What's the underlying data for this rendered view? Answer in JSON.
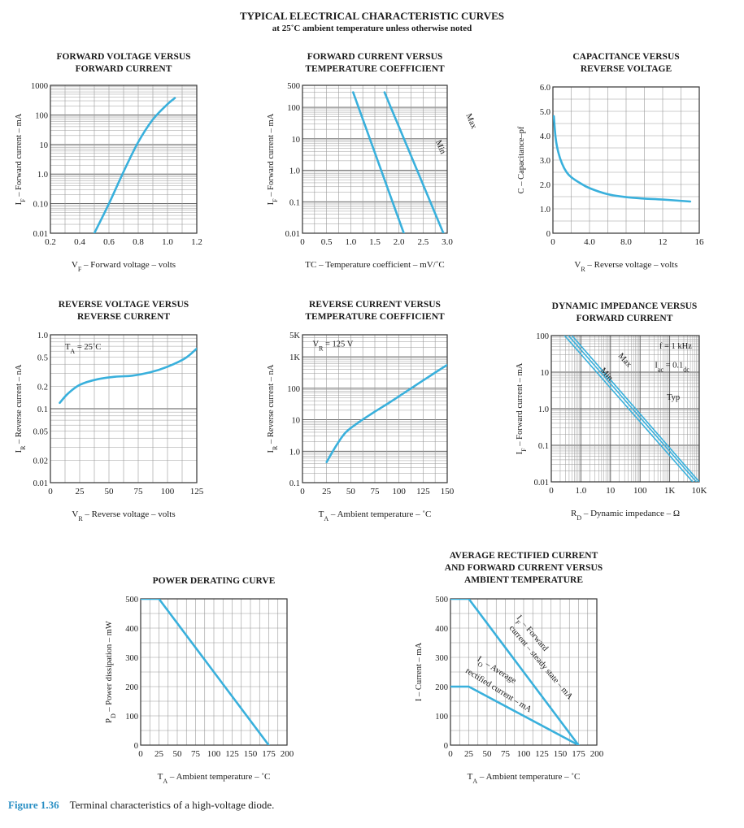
{
  "header": {
    "title": "TYPICAL ELECTRICAL CHARACTERISTIC CURVES",
    "subtitle": "at 25˚C ambient temperature unless otherwise noted"
  },
  "caption": {
    "figure": "Figure 1.36",
    "text": "Terminal characteristics of a high-voltage diode."
  },
  "colors": {
    "curve": "#39b0dc",
    "grid": "#9a9a9a",
    "frame": "#333333"
  },
  "chart_data": [
    {
      "id": "c1",
      "type": "line",
      "title": [
        "FORWARD VOLTAGE VERSUS",
        "FORWARD CURRENT"
      ],
      "xlabel": "V_F – Forward voltage – volts",
      "ylabel": "I_F – Forward current – mA",
      "xlim": [
        0.2,
        1.2
      ],
      "ylim": [
        0.01,
        1000
      ],
      "yscale": "log",
      "xticks": [
        0.2,
        0.4,
        0.6,
        0.8,
        1.0,
        1.2
      ],
      "xticklabels": [
        "0.2",
        "0.4",
        "0.6",
        "0.8",
        "1.0",
        "1.2"
      ],
      "yticks": [
        0.01,
        0.1,
        1,
        10,
        100,
        1000
      ],
      "yticklabels": [
        "0.01",
        "0.10",
        "1.0",
        "10",
        "100",
        "1000"
      ],
      "grid": true,
      "annotations": [],
      "series": [
        {
          "x": [
            0.5,
            0.6,
            0.7,
            0.8,
            0.9,
            1.0,
            1.05
          ],
          "y": [
            0.01,
            0.1,
            1.2,
            12,
            70,
            230,
            370
          ]
        }
      ]
    },
    {
      "id": "c2",
      "type": "line",
      "title": [
        "FORWARD CURRENT VERSUS",
        "TEMPERATURE COEFFICIENT"
      ],
      "xlabel": "TC – Temperature coefficient – mV/˚C",
      "ylabel": "I_F – Forward current – mA",
      "xlim": [
        0,
        3.0
      ],
      "ylim": [
        0.01,
        500
      ],
      "yscale": "log",
      "xticks": [
        0,
        0.5,
        1.0,
        1.5,
        2.0,
        2.5,
        3.0
      ],
      "xticklabels": [
        "0",
        "0.5",
        "1.0",
        "1.5",
        "2.0",
        "2.5",
        "3.0"
      ],
      "yticks": [
        0.01,
        0.1,
        1,
        10,
        100,
        500
      ],
      "yticklabels": [
        "0.01",
        "0.1",
        "1.0",
        "10",
        "100",
        "500"
      ],
      "grid": true,
      "annotations": [
        {
          "text": "Min",
          "x": 0.92,
          "y": 0.38,
          "rot": 67
        },
        {
          "text": "Max",
          "x": 1.13,
          "y": 0.2,
          "rot": 67
        }
      ],
      "series": [
        {
          "name": "Min",
          "x": [
            1.05,
            2.1
          ],
          "y": [
            300,
            0.01
          ]
        },
        {
          "name": "Max",
          "x": [
            1.7,
            2.92
          ],
          "y": [
            300,
            0.01
          ]
        }
      ]
    },
    {
      "id": "c3",
      "type": "line",
      "title": [
        "CAPACITANCE VERSUS",
        "REVERSE VOLTAGE"
      ],
      "xlabel": "V_R – Reverse voltage – volts",
      "ylabel": "C – Capacitance–pf",
      "xlim": [
        0,
        16
      ],
      "ylim": [
        0,
        6.0
      ],
      "yscale": "linear",
      "xticks": [
        0,
        4,
        8,
        12,
        16
      ],
      "xticklabels": [
        "0",
        "4.0",
        "8.0",
        "12",
        "16"
      ],
      "yticks": [
        0,
        1,
        2,
        3,
        4,
        5,
        6
      ],
      "yticklabels": [
        "0",
        "1.0",
        "2.0",
        "3.0",
        "4.0",
        "5.0",
        "6.0"
      ],
      "grid": true,
      "annotations": [],
      "series": [
        {
          "x": [
            0.1,
            0.3,
            0.6,
            1,
            1.5,
            2,
            3,
            4,
            6,
            8,
            10,
            12,
            15
          ],
          "y": [
            4.8,
            3.9,
            3.3,
            2.85,
            2.5,
            2.3,
            2.05,
            1.85,
            1.6,
            1.48,
            1.42,
            1.38,
            1.3
          ]
        }
      ]
    },
    {
      "id": "c4",
      "type": "line",
      "title": [
        "REVERSE VOLTAGE VERSUS",
        "REVERSE CURRENT"
      ],
      "xlabel": "V_R – Reverse voltage – volts",
      "ylabel": "I_R – Reverse current – nA",
      "xlim": [
        0,
        125
      ],
      "ylim": [
        0.01,
        1.0
      ],
      "yscale": "log",
      "xticks": [
        0,
        25,
        50,
        75,
        100,
        125
      ],
      "xticklabels": [
        "0",
        "25",
        "50",
        "75",
        "100",
        "125"
      ],
      "yticks": [
        0.01,
        0.02,
        0.05,
        0.1,
        0.2,
        0.5,
        1.0
      ],
      "yticklabels": [
        "0.01",
        "0.02",
        "0.05",
        "0.1",
        "0.2",
        "0.5",
        "1.0"
      ],
      "grid": true,
      "annotations": [
        {
          "text": "T_A = 25˚C",
          "x": 0.1,
          "y": 0.1,
          "rot": 0
        }
      ],
      "series": [
        {
          "x": [
            8,
            15,
            25,
            40,
            55,
            70,
            85,
            100,
            115,
            125
          ],
          "y": [
            0.12,
            0.16,
            0.21,
            0.25,
            0.27,
            0.28,
            0.31,
            0.37,
            0.48,
            0.65
          ]
        }
      ]
    },
    {
      "id": "c5",
      "type": "line",
      "title": [
        "REVERSE CURRENT VERSUS",
        "TEMPERATURE COEFFICIENT"
      ],
      "xlabel": "T_A – Ambient temperature – ˚C",
      "ylabel": "I_R – Reverse current – nA",
      "xlim": [
        0,
        150
      ],
      "ylim": [
        0.1,
        5000
      ],
      "yscale": "log",
      "xticks": [
        0,
        25,
        50,
        75,
        100,
        125,
        150
      ],
      "xticklabels": [
        "0",
        "25",
        "50",
        "75",
        "100",
        "125",
        "150"
      ],
      "yticks": [
        0.1,
        1,
        10,
        100,
        1000,
        5000
      ],
      "yticklabels": [
        "0.1",
        "1.0",
        "10",
        "100",
        "1K",
        "5K"
      ],
      "grid": true,
      "annotations": [
        {
          "text": "V_R = 125 V",
          "x": 0.07,
          "y": 0.08,
          "rot": 0
        }
      ],
      "series": [
        {
          "x": [
            25,
            35,
            45,
            60,
            75,
            90,
            105,
            120,
            135,
            150
          ],
          "y": [
            0.45,
            1.5,
            4,
            9,
            18,
            35,
            70,
            140,
            280,
            550
          ]
        }
      ]
    },
    {
      "id": "c6",
      "type": "line",
      "title": [
        "DYNAMIC IMPEDANCE VERSUS",
        "FORWARD CURRENT"
      ],
      "xlabel": "R_D – Dynamic impedance – Ω",
      "ylabel": "I_F – Forward current – mA",
      "xlim": [
        0.1,
        10000
      ],
      "ylim": [
        0.01,
        100
      ],
      "xscale": "log",
      "yscale": "log",
      "xticks": [
        0.1,
        1,
        10,
        100,
        1000,
        10000
      ],
      "xticklabels": [
        "0",
        "1.0",
        "10",
        "100",
        "1K",
        "10K"
      ],
      "yticks": [
        0.01,
        0.1,
        1,
        10,
        100
      ],
      "yticklabels": [
        "0.01",
        "0.1",
        "1.0",
        "10",
        "100"
      ],
      "grid": true,
      "annotations": [
        {
          "text": "Max",
          "x": 0.45,
          "y": 0.14,
          "rot": 48
        },
        {
          "text": "Min",
          "x": 0.33,
          "y": 0.24,
          "rot": 48
        },
        {
          "text": "f = 1 kHz",
          "x": 0.73,
          "y": 0.09,
          "rot": 0
        },
        {
          "text": "I_ac = 0.1_dc",
          "x": 0.7,
          "y": 0.22,
          "rot": 0
        },
        {
          "text": "Typ",
          "x": 0.78,
          "y": 0.44,
          "rot": 0
        }
      ],
      "series": [
        {
          "name": "Max",
          "x": [
            0.5,
            10000
          ],
          "y": [
            100,
            0.01
          ]
        },
        {
          "name": "Typ",
          "x": [
            0.38,
            8000
          ],
          "y": [
            100,
            0.01
          ]
        },
        {
          "name": "Min",
          "x": [
            0.28,
            6000
          ],
          "y": [
            100,
            0.01
          ]
        }
      ]
    },
    {
      "id": "c7",
      "type": "line",
      "title": [
        "POWER DERATING CURVE"
      ],
      "xlabel": "T_A – Ambient temperature – ˚C",
      "ylabel": "P_D – Power dissipation – mW",
      "xlim": [
        0,
        200
      ],
      "ylim": [
        0,
        500
      ],
      "yscale": "linear",
      "xticks": [
        0,
        25,
        50,
        75,
        100,
        125,
        150,
        175,
        200
      ],
      "xticklabels": [
        "0",
        "25",
        "50",
        "75",
        "100",
        "125",
        "150",
        "175",
        "200"
      ],
      "yticks": [
        0,
        100,
        200,
        300,
        400,
        500
      ],
      "yticklabels": [
        "0",
        "100",
        "200",
        "300",
        "400",
        "500"
      ],
      "grid": true,
      "annotations": [],
      "series": [
        {
          "x": [
            0,
            25,
            175
          ],
          "y": [
            500,
            500,
            0
          ]
        }
      ]
    },
    {
      "id": "c8",
      "type": "line",
      "title": [
        "AVERAGE RECTIFIED CURRENT",
        "AND FORWARD CURRENT VERSUS",
        "AMBIENT TEMPERATURE"
      ],
      "xlabel": "T_A – Ambient temperature – ˚C",
      "ylabel": "I – Current – mA",
      "xlim": [
        0,
        200
      ],
      "ylim": [
        0,
        500
      ],
      "yscale": "linear",
      "xticks": [
        0,
        25,
        50,
        75,
        100,
        125,
        150,
        175,
        200
      ],
      "xticklabels": [
        "0",
        "25",
        "50",
        "75",
        "100",
        "125",
        "150",
        "175",
        "200"
      ],
      "yticks": [
        0,
        100,
        200,
        300,
        400,
        500
      ],
      "yticklabels": [
        "0",
        "100",
        "200",
        "300",
        "400",
        "500"
      ],
      "grid": true,
      "annotations": [
        {
          "text": "I_F – Forward",
          "x": 0.45,
          "y": 0.13,
          "rot": 50
        },
        {
          "text": "current – steady state – mA",
          "x": 0.4,
          "y": 0.2,
          "rot": 50
        },
        {
          "text": "I_O – Average",
          "x": 0.18,
          "y": 0.42,
          "rot": 32
        },
        {
          "text": "rectified current – mA",
          "x": 0.1,
          "y": 0.5,
          "rot": 32
        }
      ],
      "series": [
        {
          "name": "I_F",
          "x": [
            0,
            25,
            175
          ],
          "y": [
            500,
            500,
            0
          ]
        },
        {
          "name": "I_O",
          "x": [
            0,
            25,
            175
          ],
          "y": [
            200,
            200,
            0
          ]
        }
      ]
    }
  ]
}
